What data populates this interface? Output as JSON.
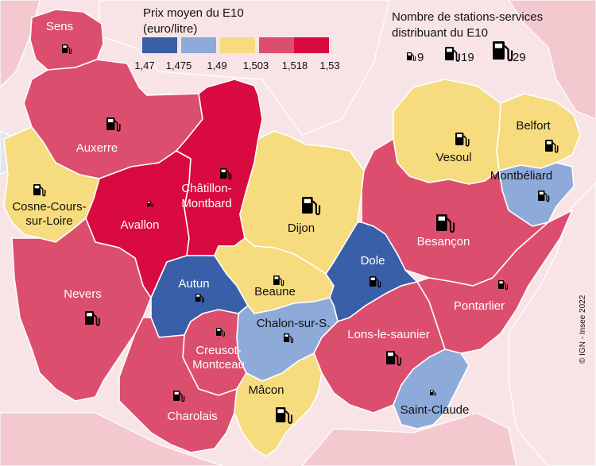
{
  "colors": {
    "bin_1": "#3a5fa9",
    "bin_2": "#8eaad9",
    "bin_3": "#f6dc7e",
    "bin_4": "#dc4e6e",
    "bin_5": "#d80a3f",
    "outside_pink": "#f3c9cf",
    "outside_light": "#f8e4e6",
    "neighbor_blue": "#dfe6f2"
  },
  "legend_price": {
    "title_line1": "Prix moyen du E10",
    "title_line2": "(euro/litre)",
    "breaks": [
      "1,47",
      "1,475",
      "1,49",
      "1,503",
      "1,518",
      "1,53"
    ]
  },
  "legend_stations": {
    "title_line1": "Nombre de stations-services",
    "title_line2": "distribuant du E10",
    "sizes": [
      "9",
      "19",
      "29"
    ]
  },
  "credit": "© IGN - Insee 2022",
  "zones": [
    {
      "key": "sens",
      "label_lines": [
        "Sens"
      ],
      "bin": 4
    },
    {
      "key": "auxerre",
      "label_lines": [
        "Auxerre"
      ],
      "bin": 4
    },
    {
      "key": "cosne",
      "label_lines": [
        "Cosne-Cours-",
        "sur-Loire"
      ],
      "bin": 3
    },
    {
      "key": "avallon",
      "label_lines": [
        "Avallon"
      ],
      "bin": 5
    },
    {
      "key": "chatillon",
      "label_lines": [
        "Châtillon-",
        "Montbard"
      ],
      "bin": 5
    },
    {
      "key": "dijon",
      "label_lines": [
        "Dijon"
      ],
      "bin": 3
    },
    {
      "key": "vesoul",
      "label_lines": [
        "Vesoul"
      ],
      "bin": 3
    },
    {
      "key": "belfort",
      "label_lines": [
        "Belfort"
      ],
      "bin": 3
    },
    {
      "key": "montbeliard",
      "label_lines": [
        "Montbéliard"
      ],
      "bin": 2
    },
    {
      "key": "besancon",
      "label_lines": [
        "Besançon"
      ],
      "bin": 4
    },
    {
      "key": "nevers",
      "label_lines": [
        "Nevers"
      ],
      "bin": 4
    },
    {
      "key": "autun",
      "label_lines": [
        "Autun"
      ],
      "bin": 1
    },
    {
      "key": "beaune",
      "label_lines": [
        "Beaune"
      ],
      "bin": 3
    },
    {
      "key": "dole",
      "label_lines": [
        "Dole"
      ],
      "bin": 1
    },
    {
      "key": "pontarlier",
      "label_lines": [
        "Pontarlier"
      ],
      "bin": 4
    },
    {
      "key": "chalon",
      "label_lines": [
        "Chalon-sur-S."
      ],
      "bin": 2
    },
    {
      "key": "lons",
      "label_lines": [
        "Lons-le-saunier"
      ],
      "bin": 4
    },
    {
      "key": "creusot",
      "label_lines": [
        "Creusot-",
        "Montceau"
      ],
      "bin": 4
    },
    {
      "key": "charolais",
      "label_lines": [
        "Charolais"
      ],
      "bin": 4
    },
    {
      "key": "macon",
      "label_lines": [
        "Mâcon"
      ],
      "bin": 3
    },
    {
      "key": "saint_claude",
      "label_lines": [
        "Saint-Claude"
      ],
      "bin": 2
    }
  ]
}
